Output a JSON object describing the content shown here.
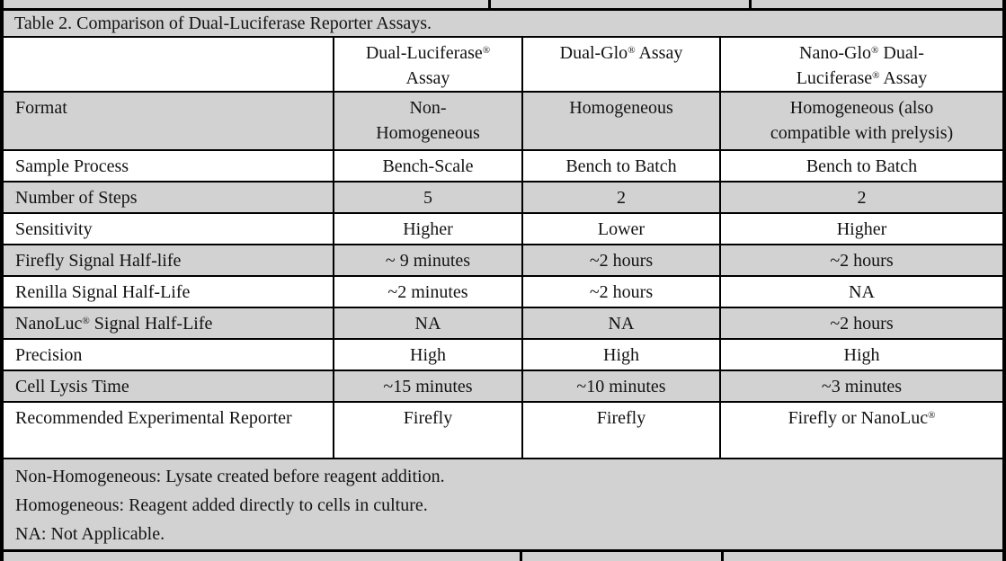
{
  "table": {
    "title": "Table 2. Comparison of Dual-Luciferase Reporter Assays.",
    "columns": [
      "",
      "Dual-Luciferase®\nAssay",
      "Dual-Glo® Assay",
      "Nano-Glo® Dual-\nLuciferase® Assay"
    ],
    "rows": [
      {
        "label": "Format",
        "values": [
          "Non-\nHomogeneous",
          "Homogeneous",
          "Homogeneous (also\ncompatible with prelysis)"
        ]
      },
      {
        "label": "Sample Process",
        "values": [
          "Bench-Scale",
          "Bench to Batch",
          "Bench to Batch"
        ]
      },
      {
        "label": "Number of Steps",
        "values": [
          "5",
          "2",
          "2"
        ]
      },
      {
        "label": "Sensitivity",
        "values": [
          "Higher",
          "Lower",
          "Higher"
        ]
      },
      {
        "label": "Firefly Signal Half-life",
        "values": [
          "~ 9 minutes",
          "~2 hours",
          "~2 hours"
        ]
      },
      {
        "label": "Renilla Signal Half-Life",
        "values": [
          "~2 minutes",
          "~2 hours",
          "NA"
        ]
      },
      {
        "label": "NanoLuc® Signal Half-Life",
        "values": [
          "NA",
          "NA",
          "~2 hours"
        ]
      },
      {
        "label": "Precision",
        "values": [
          "High",
          "High",
          "High"
        ]
      },
      {
        "label": "Cell Lysis Time",
        "values": [
          "~15 minutes",
          "~10 minutes",
          "~3 minutes"
        ]
      },
      {
        "label": "Recommended Experimental Reporter",
        "values": [
          "Firefly",
          "Firefly",
          "Firefly or NanoLuc®"
        ]
      }
    ],
    "footnotes": [
      "Non-Homogeneous: Lysate created before reagent addition.",
      "Homogeneous: Reagent added directly to cells in culture.",
      "NA: Not Applicable."
    ]
  }
}
